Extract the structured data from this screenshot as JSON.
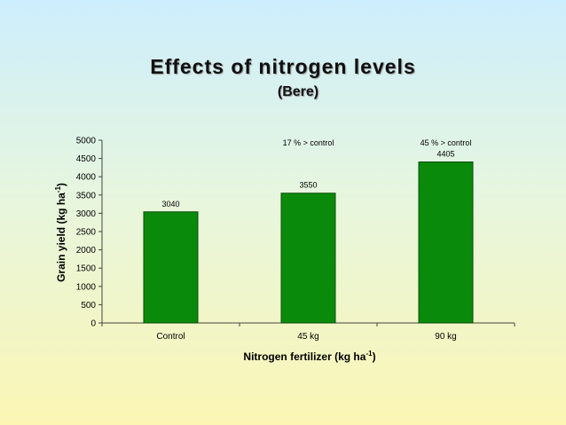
{
  "slide": {
    "title": "Effects of nitrogen levels",
    "subtitle": "(Bere)"
  },
  "colors": {
    "bar": "#0a8a0a",
    "bar_border": "#0b4d0b",
    "axis": "#444444"
  },
  "chart_data": {
    "type": "bar",
    "categories": [
      "Control",
      "45 kg",
      "90 kg"
    ],
    "values": [
      3040,
      3550,
      4405
    ],
    "data_labels": [
      "3040",
      "3550",
      "4405"
    ],
    "annotations": [
      {
        "text": "17 % > control",
        "category": "45 kg"
      },
      {
        "text": "45 % > control",
        "category": "90 kg"
      }
    ],
    "xlabel": "Nitrogen fertilizer (kg ha",
    "xlabel_sup": "-1",
    "xlabel_end": ")",
    "ylabel": "Grain yield (kg ha",
    "ylabel_sup": "-1",
    "ylabel_end": ")",
    "ylim": [
      0,
      5000
    ],
    "yticks": [
      0,
      500,
      1000,
      1500,
      2000,
      2500,
      3000,
      3500,
      4000,
      4500,
      5000
    ],
    "grid": false,
    "legend": false
  }
}
